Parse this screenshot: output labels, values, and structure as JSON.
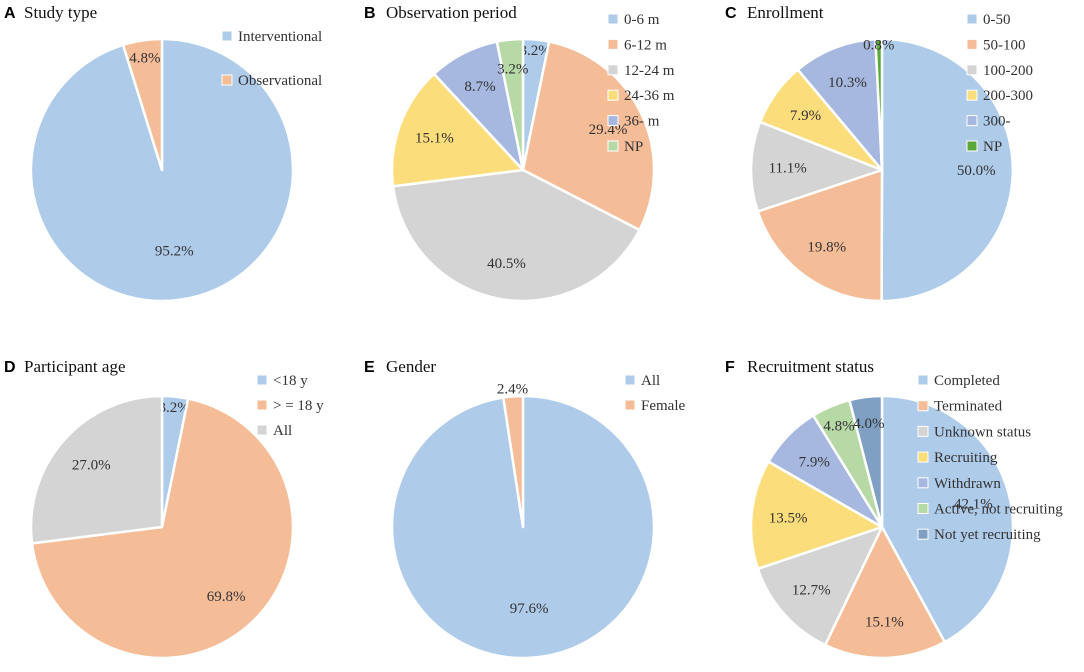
{
  "chart_data": [
    {
      "type": "pie",
      "letter": "A",
      "title": "Study type",
      "slices": [
        {
          "label": "Interventional",
          "value": 95.2,
          "value_label": "95.2%",
          "color": "#AECBEA"
        },
        {
          "label": "Observational",
          "value": 4.8,
          "value_label": "4.8%",
          "color": "#F5BC98"
        }
      ]
    },
    {
      "type": "pie",
      "letter": "B",
      "title": "Observation period",
      "slices": [
        {
          "label": "0-6 m",
          "value": 3.2,
          "value_label": "3.2%",
          "color": "#AECBEA"
        },
        {
          "label": "6-12 m",
          "value": 29.4,
          "value_label": "29.4%",
          "color": "#F5BC98"
        },
        {
          "label": "12-24 m",
          "value": 40.5,
          "value_label": "40.5%",
          "color": "#D4D4D4"
        },
        {
          "label": "24-36 m",
          "value": 15.1,
          "value_label": "15.1%",
          "color": "#FCDD7C"
        },
        {
          "label": "36- m",
          "value": 8.7,
          "value_label": "8.7%",
          "color": "#A6B8E0"
        },
        {
          "label": "NP",
          "value": 3.2,
          "value_label": "3.2%",
          "color": "#B6D9A6"
        }
      ]
    },
    {
      "type": "pie",
      "letter": "C",
      "title": "Enrollment",
      "slices": [
        {
          "label": "0-50",
          "value": 50.0,
          "value_label": "50.0%",
          "color": "#AECBEA"
        },
        {
          "label": "50-100",
          "value": 19.8,
          "value_label": "19.8%",
          "color": "#F5BC98"
        },
        {
          "label": "100-200",
          "value": 11.1,
          "value_label": "11.1%",
          "color": "#D4D4D4"
        },
        {
          "label": "200-300",
          "value": 7.9,
          "value_label": "7.9%",
          "color": "#FCDD7C"
        },
        {
          "label": "300-",
          "value": 10.3,
          "value_label": "10.3%",
          "color": "#A6B8E0"
        },
        {
          "label": "NP",
          "value": 0.8,
          "value_label": "0.8%",
          "color": "#5BA83A"
        }
      ]
    },
    {
      "type": "pie",
      "letter": "D",
      "title": "Participant age",
      "slices": [
        {
          "label": "<18 y",
          "value": 3.2,
          "value_label": "3.2%",
          "color": "#AECBEA"
        },
        {
          "label": "> = 18 y",
          "value": 69.8,
          "value_label": "69.8%",
          "color": "#F5BC98"
        },
        {
          "label": "All",
          "value": 27.0,
          "value_label": "27.0%",
          "color": "#D4D4D4"
        }
      ]
    },
    {
      "type": "pie",
      "letter": "E",
      "title": "Gender",
      "slices": [
        {
          "label": "All",
          "value": 97.6,
          "value_label": "97.6%",
          "color": "#AECBEA"
        },
        {
          "label": "Female",
          "value": 2.4,
          "value_label": "2.4%",
          "color": "#F5BC98"
        }
      ]
    },
    {
      "type": "pie",
      "letter": "F",
      "title": "Recruitment status",
      "slices": [
        {
          "label": "Completed",
          "value": 42.1,
          "value_label": "42.1%",
          "color": "#AECBEA"
        },
        {
          "label": "Terminated",
          "value": 15.1,
          "value_label": "15.1%",
          "color": "#F5BC98"
        },
        {
          "label": "Unknown status",
          "value": 12.7,
          "value_label": "12.7%",
          "color": "#D4D4D4"
        },
        {
          "label": "Recruiting",
          "value": 13.5,
          "value_label": "13.5%",
          "color": "#FCDD7C"
        },
        {
          "label": "Withdrawn",
          "value": 7.9,
          "value_label": "7.9%",
          "color": "#A6B8E0"
        },
        {
          "label": "Active, not recruiting",
          "value": 4.8,
          "value_label": "4.8%",
          "color": "#B6D9A6"
        },
        {
          "label": "Not yet recruiting",
          "value": 4.0,
          "value_label": "4.0%",
          "color": "#7F9FC3"
        }
      ]
    }
  ]
}
